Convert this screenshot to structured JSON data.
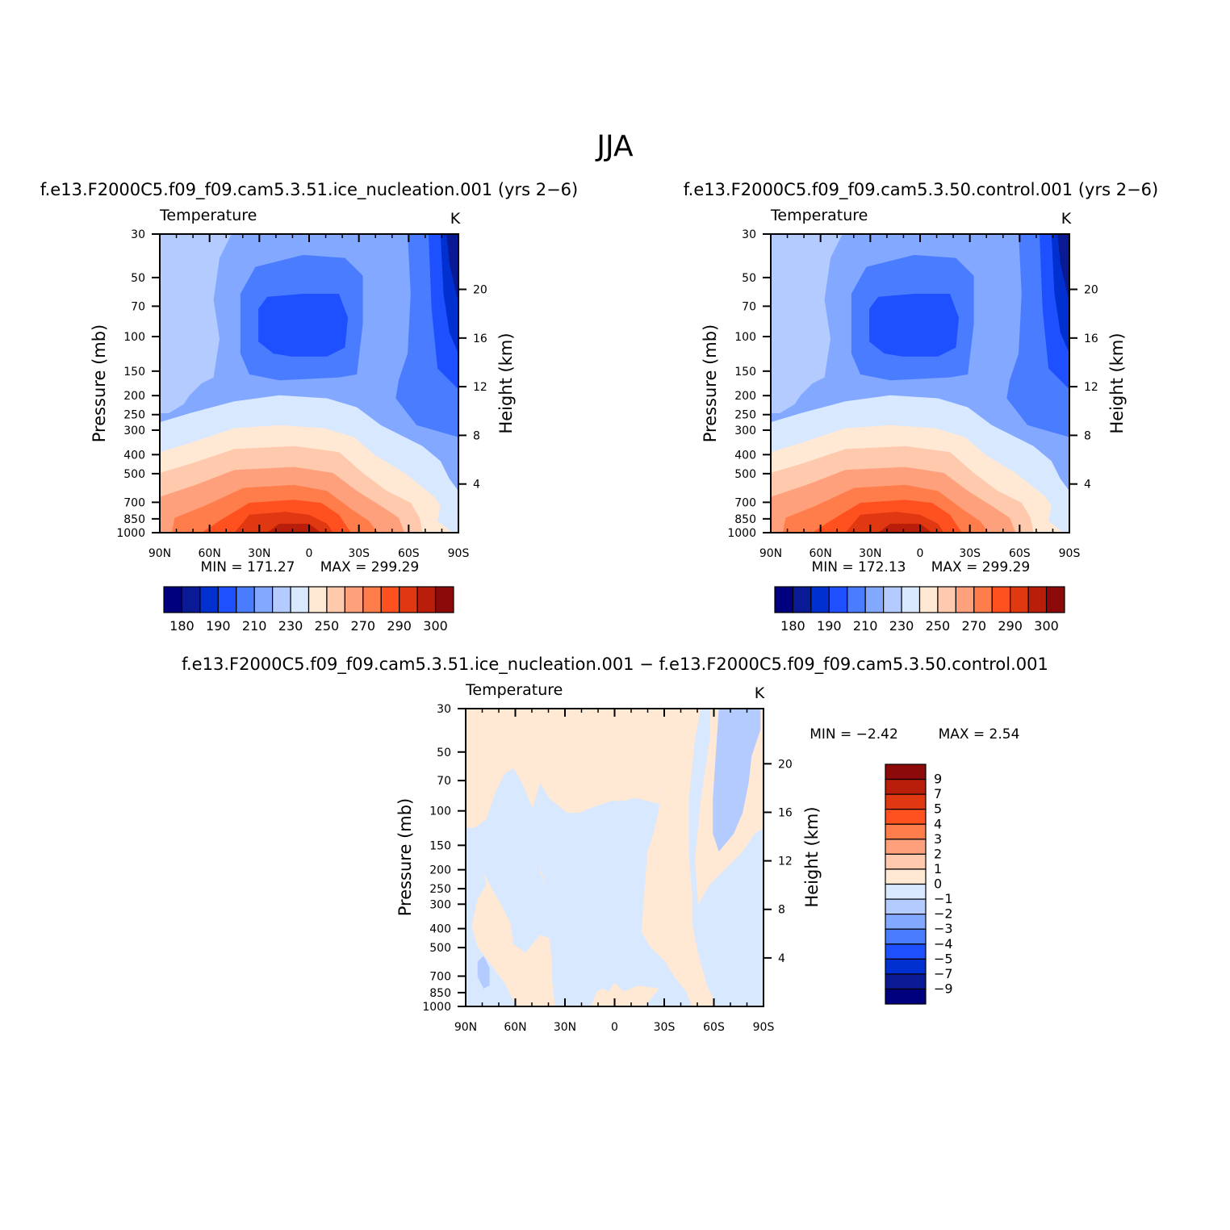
{
  "figure": {
    "title": "JJA"
  },
  "chart_data": [
    {
      "type": "contour",
      "panel_title": "f.e13.F2000C5.f09_f09.cam5.3.51.ice_nucleation.001  (yrs  2−6)",
      "variable": "Temperature",
      "units": "K",
      "ylabel": "Pressure  (mb)",
      "ylabel_right": "Height  (km)",
      "x_ticks": [
        "90N",
        "60N",
        "30N",
        "0",
        "30S",
        "60S",
        "90S"
      ],
      "x_values": [
        90,
        60,
        30,
        0,
        -30,
        -60,
        -90
      ],
      "pressure_ticks": [
        30,
        50,
        70,
        100,
        150,
        200,
        250,
        300,
        400,
        500,
        700,
        850,
        1000
      ],
      "height_ticks": [
        4,
        8,
        12,
        16,
        20
      ],
      "ylim": [
        1000,
        30
      ],
      "min_label": "MIN  =  171.27",
      "max_label": "MAX  =  299.29",
      "min": 171.27,
      "max": 299.29,
      "colorbar_ticks": [
        "180",
        "190",
        "210",
        "230",
        "250",
        "270",
        "290",
        "300"
      ],
      "levels": [
        180,
        190,
        200,
        210,
        220,
        230,
        240,
        250,
        260,
        270,
        280,
        290,
        295,
        300
      ]
    },
    {
      "type": "contour",
      "panel_title": "f.e13.F2000C5.f09_f09.cam5.3.50.control.001  (yrs  2−6)",
      "variable": "Temperature",
      "units": "K",
      "ylabel": "Pressure  (mb)",
      "ylabel_right": "Height  (km)",
      "x_ticks": [
        "90N",
        "60N",
        "30N",
        "0",
        "30S",
        "60S",
        "90S"
      ],
      "x_values": [
        90,
        60,
        30,
        0,
        -30,
        -60,
        -90
      ],
      "pressure_ticks": [
        30,
        50,
        70,
        100,
        150,
        200,
        250,
        300,
        400,
        500,
        700,
        850,
        1000
      ],
      "height_ticks": [
        4,
        8,
        12,
        16,
        20
      ],
      "ylim": [
        1000,
        30
      ],
      "min_label": "MIN  =  172.13",
      "max_label": "MAX  =  299.29",
      "min": 172.13,
      "max": 299.29,
      "colorbar_ticks": [
        "180",
        "190",
        "210",
        "230",
        "250",
        "270",
        "290",
        "300"
      ],
      "levels": [
        180,
        190,
        200,
        210,
        220,
        230,
        240,
        250,
        260,
        270,
        280,
        290,
        295,
        300
      ]
    },
    {
      "type": "contour",
      "panel_title": "f.e13.F2000C5.f09_f09.cam5.3.51.ice_nucleation.001  −  f.e13.F2000C5.f09_f09.cam5.3.50.control.001",
      "variable": "Temperature",
      "units": "K",
      "ylabel": "Pressure  (mb)",
      "ylabel_right": "Height  (km)",
      "x_ticks": [
        "90N",
        "60N",
        "30N",
        "0",
        "30S",
        "60S",
        "90S"
      ],
      "x_values": [
        90,
        60,
        30,
        0,
        -30,
        -60,
        -90
      ],
      "pressure_ticks": [
        30,
        50,
        70,
        100,
        150,
        200,
        250,
        300,
        400,
        500,
        700,
        850,
        1000
      ],
      "height_ticks": [
        4,
        8,
        12,
        16,
        20
      ],
      "ylim": [
        1000,
        30
      ],
      "min_label": "MIN  =    −2.42",
      "max_label": "MAX  =     2.54",
      "min": -2.42,
      "max": 2.54,
      "colorbar_ticks": [
        "9",
        "7",
        "5",
        "4",
        "3",
        "2",
        "1",
        "0",
        "−1",
        "−2",
        "−3",
        "−4",
        "−5",
        "−7",
        "−9"
      ]
    }
  ],
  "palettes": {
    "absolute": [
      "#00007e",
      "#0a1a94",
      "#0030d0",
      "#1e50ff",
      "#4a7cff",
      "#82a8ff",
      "#b4cbff",
      "#d8e8ff",
      "#ffe8d4",
      "#ffc9ad",
      "#ffa07c",
      "#ff7d4a",
      "#ff5020",
      "#e03810",
      "#b81e0a",
      "#8c0a0a"
    ],
    "difference": [
      "#8c0a0a",
      "#b81e0a",
      "#e03810",
      "#ff5020",
      "#ff7d4a",
      "#ffa07c",
      "#ffc9ad",
      "#ffe8d4",
      "#d8e8ff",
      "#b4cbff",
      "#82a8ff",
      "#4a7cff",
      "#1e50ff",
      "#0030d0",
      "#0a1a94",
      "#00007e"
    ]
  }
}
